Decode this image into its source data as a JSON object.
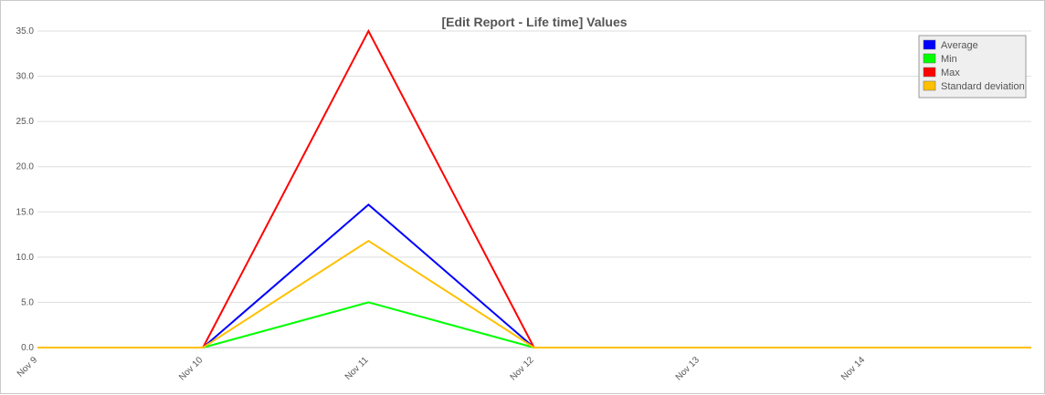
{
  "chart_data": {
    "type": "line",
    "title": "[Edit Report - Life time] Values",
    "xlabel": "",
    "ylabel": "",
    "x": [
      "Nov 9",
      "Nov 10",
      "Nov 11",
      "Nov 12",
      "Nov 13",
      "Nov 14"
    ],
    "ylim": [
      0,
      35
    ],
    "yticks": [
      "0.0",
      "5.0",
      "10.0",
      "15.0",
      "20.0",
      "25.0",
      "30.0",
      "35.0"
    ],
    "grid": true,
    "legend_position": "top-right",
    "series": [
      {
        "name": "Average",
        "color": "#0000ff",
        "values": [
          0,
          0,
          15.8,
          0,
          0,
          0
        ]
      },
      {
        "name": "Min",
        "color": "#00ff00",
        "values": [
          0,
          0,
          5.0,
          0,
          0,
          0
        ]
      },
      {
        "name": "Max",
        "color": "#ff0000",
        "values": [
          0,
          0,
          35.0,
          0,
          0,
          0
        ]
      },
      {
        "name": "Standard deviation",
        "color": "#ffc000",
        "values": [
          0,
          0,
          11.8,
          0,
          0,
          0
        ]
      }
    ],
    "colors": {
      "grid": "#dddddd",
      "axis": "#bbbbbb",
      "legend_bg": "#efefef",
      "legend_border": "#999999"
    }
  }
}
